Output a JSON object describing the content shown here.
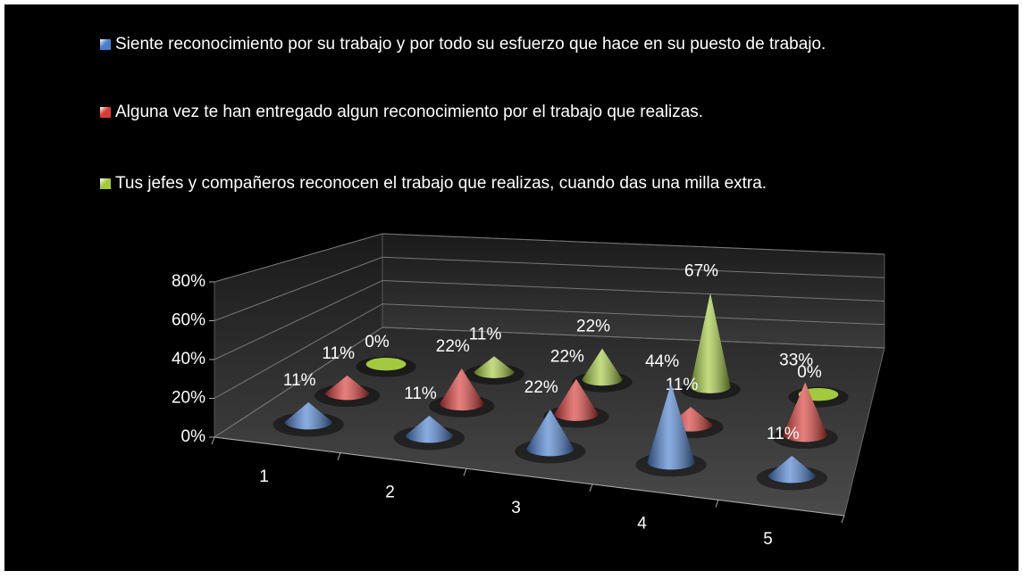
{
  "chart_data": {
    "type": "cone3d",
    "categories": [
      "1",
      "2",
      "3",
      "4",
      "5"
    ],
    "series": [
      {
        "name": "Siente reconocimiento por su trabajo y por todo su esfuerzo que hace en su puesto de trabajo.",
        "color": "#4a7fcf",
        "values": [
          11,
          11,
          22,
          44,
          11
        ],
        "value_labels": [
          "11%",
          "11%",
          "22%",
          "44%",
          "11%"
        ]
      },
      {
        "name": "Alguna vez te han entregado algun reconocimiento por el trabajo que realizas.",
        "color": "#d93a36",
        "values": [
          11,
          22,
          22,
          11,
          33
        ],
        "value_labels": [
          "11%",
          "22%",
          "22%",
          "11%",
          "33%"
        ]
      },
      {
        "name": "Tus jefes y compañeros reconocen el trabajo que realizas, cuando das una milla extra.",
        "color": "#a3c93e",
        "values": [
          0,
          11,
          22,
          67,
          0
        ],
        "value_labels": [
          "0%",
          "11%",
          "22%",
          "67%",
          "0%"
        ]
      }
    ],
    "ylim": [
      0,
      80
    ],
    "yticks": [
      {
        "value": 0,
        "label": "0%"
      },
      {
        "value": 20,
        "label": "20%"
      },
      {
        "value": 40,
        "label": "40%"
      },
      {
        "value": 60,
        "label": "60%"
      },
      {
        "value": 80,
        "label": "80%"
      }
    ],
    "grid": true,
    "legend": "top"
  }
}
